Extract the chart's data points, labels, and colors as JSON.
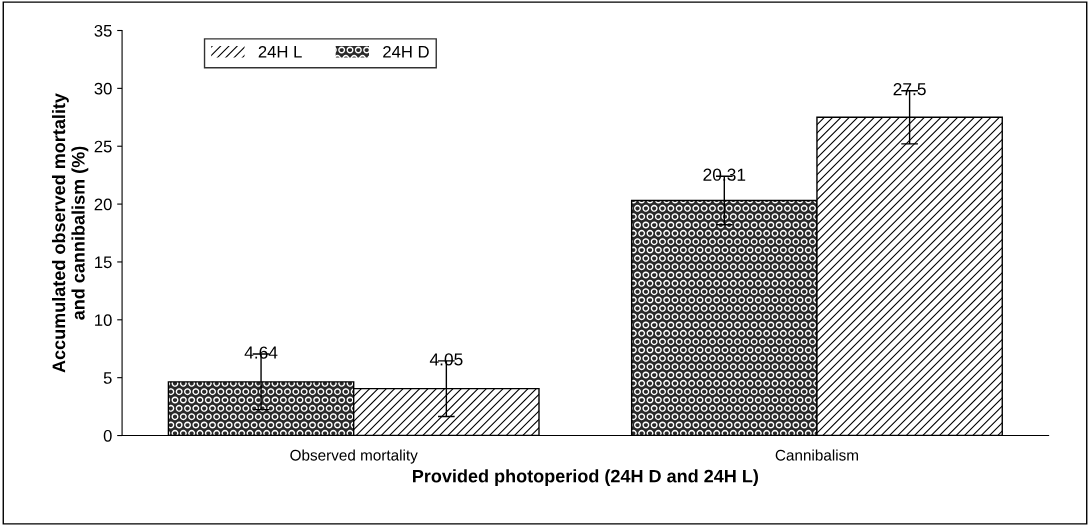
{
  "chart_data": {
    "type": "bar",
    "xlabel": "Provided photoperiod (24H D and 24H L)",
    "ylabel": "Accumulated observed mortality\nand cannibalism (%)",
    "categories": [
      "Observed mortality",
      "Cannibalism"
    ],
    "series": [
      {
        "name": "24H D",
        "color": "#2a2a2a",
        "values": [
          4.64,
          20.31
        ],
        "errors": [
          2.4,
          2.1
        ]
      },
      {
        "name": "24H L",
        "color": "#ffffff",
        "values": [
          4.05,
          27.5
        ],
        "errors": [
          2.4,
          2.3
        ]
      }
    ],
    "ylim": [
      0,
      35
    ],
    "yticks": [
      0,
      5,
      10,
      15,
      20,
      25,
      30,
      35
    ],
    "data_labels": true,
    "legend": "top left",
    "grid": false
  }
}
